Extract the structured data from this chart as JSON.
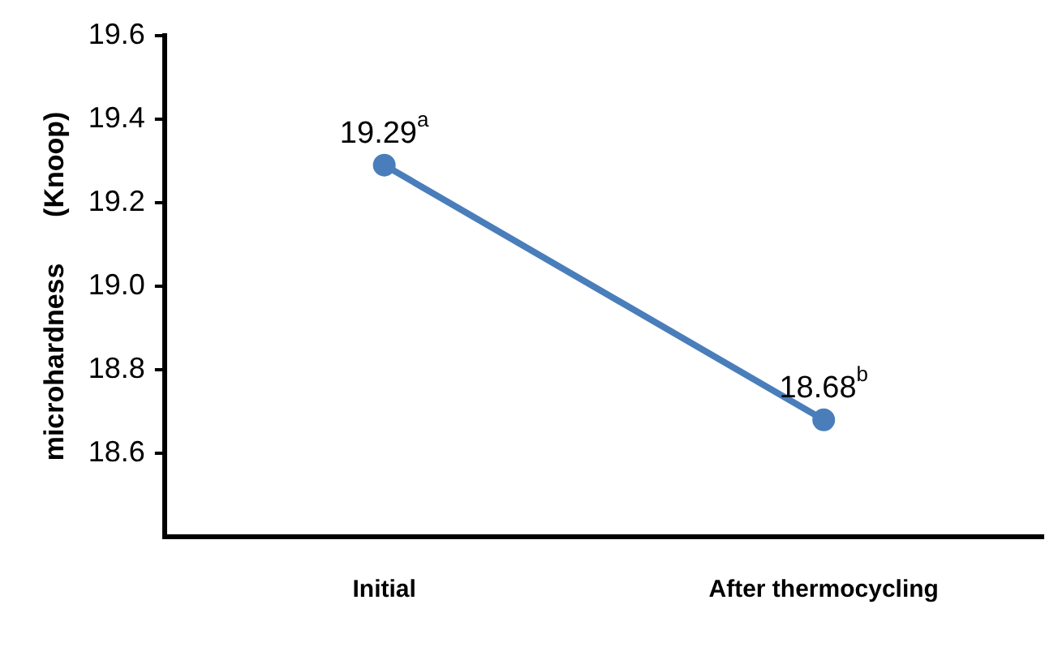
{
  "chart_data": {
    "type": "line",
    "ylabel": "microhardness      (Knoop)",
    "categories": [
      "Initial",
      "After thermocycling"
    ],
    "series": [
      {
        "color": "#4a7ebb",
        "values": [
          19.29,
          18.68
        ],
        "value_labels": [
          "19.29$^{a}$",
          "18.68$^{b}$"
        ]
      }
    ],
    "ylim": [
      18.4,
      19.6
    ],
    "yticks": [
      18.6,
      18.8,
      {
        "value": 19.0,
        "label": "19.0"
      },
      19.2,
      19.4,
      19.6
    ],
    "grid": false,
    "legend": false,
    "marker": "circle",
    "line_style": "solid"
  }
}
